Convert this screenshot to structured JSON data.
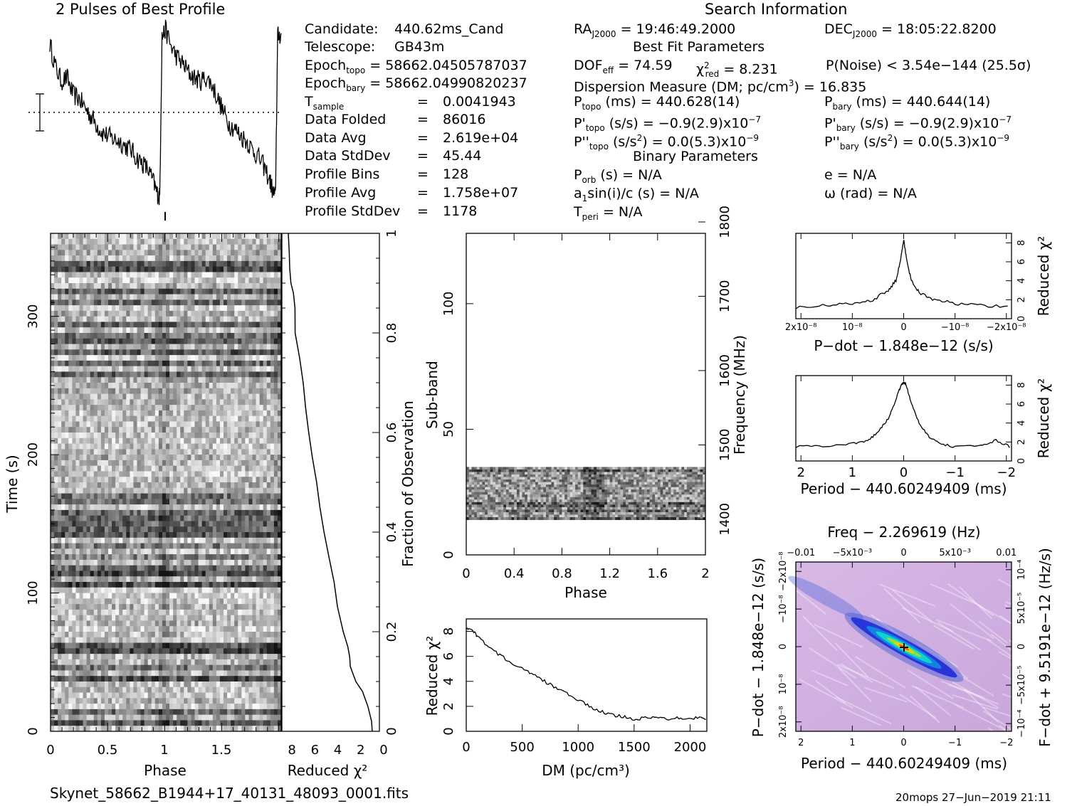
{
  "profile_title": "2 Pulses of Best Profile",
  "search_title": "Search Information",
  "candidate": {
    "label": "Candidate:",
    "value": "440.62ms_Cand"
  },
  "telescope": {
    "label": "Telescope:",
    "value": "GB43m"
  },
  "epoch_topo": {
    "label": "Epoch",
    "sub": "topo",
    "value": "= 58662.04505787037"
  },
  "epoch_bary": {
    "label": "Epoch",
    "sub": "bary",
    "value": "= 58662.04990820237"
  },
  "t_sample": {
    "label": "T",
    "sub": "sample",
    "value": "0.0041943"
  },
  "stats": [
    {
      "label": "Data Folded",
      "value": "86016"
    },
    {
      "label": "Data Avg",
      "value": "2.619e+04"
    },
    {
      "label": "Data StdDev",
      "value": "45.44"
    },
    {
      "label": "Profile Bins",
      "value": "128"
    },
    {
      "label": "Profile Avg",
      "value": "1.758e+07"
    },
    {
      "label": "Profile StdDev",
      "value": "1178"
    }
  ],
  "eq": "=",
  "ra": {
    "label": "RA",
    "sub": "J2000",
    "value": "= 19:46:49.2000"
  },
  "dec": {
    "label": "DEC",
    "sub": "J2000",
    "value": "= 18:05:22.8200"
  },
  "best_fit_title": "Best Fit Parameters",
  "dof": {
    "label": "DOF",
    "sub": "eff",
    "value": "= 74.59"
  },
  "chi2": {
    "label": "χ",
    "sup": "2",
    "sub": "red",
    "value": "= 8.231"
  },
  "pnoise": "P(Noise) < 3.54e−144  (25.5σ)",
  "dm_line": {
    "pre": "Dispersion Measure (DM; pc/cm",
    "sup": "3",
    "post": ") = 16.835"
  },
  "p_topo": {
    "label": "P",
    "sub": "topo",
    "value": "(ms) =  440.628(14)"
  },
  "p_bary": {
    "label": "P",
    "sub": "bary",
    "value": "(ms) =  440.644(14)"
  },
  "pd_topo": {
    "label": "P'",
    "sub": "topo",
    "value": "(s/s) = −0.9(2.9)x10",
    "exp": "−7"
  },
  "pd_bary": {
    "label": "P'",
    "sub": "bary",
    "value": "(s/s) = −0.9(2.9)x10",
    "exp": "−7"
  },
  "pdd_topo": {
    "label": "P''",
    "sub": "topo",
    "pre": "(s/s",
    "sup": "2",
    "value": ") = 0.0(5.3)x10",
    "exp": "−9"
  },
  "pdd_bary": {
    "label": "P''",
    "sub": "bary",
    "pre": "(s/s",
    "sup": "2",
    "value": ") = 0.0(5.3)x10",
    "exp": "−9"
  },
  "binary_title": "Binary Parameters",
  "p_orb": {
    "label": "P",
    "sub": "orb",
    "value": "(s) = N/A"
  },
  "e_line": "e = N/A",
  "a1": {
    "pre": "a",
    "sub": "1",
    "value": "sin(i)/c (s) = N/A"
  },
  "omega_line": "ω (rad) = N/A",
  "t_peri": {
    "label": "T",
    "sub": "peri",
    "value": "= N/A"
  },
  "filename": "Skynet_58662_B1944+17_40131_48093_0001.fits",
  "footer": "20mops 27−Jun−2019 21:11",
  "chart_data": [
    {
      "type": "line",
      "name": "profile",
      "title": "2 Pulses of Best Profile",
      "x_range": [
        0,
        2
      ],
      "note_peaks_at_phase": [
        0.97,
        1.97
      ],
      "x": [
        0,
        0.05,
        0.1,
        0.15,
        0.2,
        0.25,
        0.3,
        0.35,
        0.4,
        0.45,
        0.5,
        0.55,
        0.6,
        0.65,
        0.7,
        0.75,
        0.8,
        0.85,
        0.9,
        0.93,
        0.95,
        0.97,
        1.0,
        1.05,
        1.1,
        1.15,
        1.2,
        1.25,
        1.3,
        1.35,
        1.4,
        1.45,
        1.5,
        1.55,
        1.6,
        1.65,
        1.7,
        1.75,
        1.8,
        1.85,
        1.9,
        1.93,
        1.95,
        1.97,
        2.0
      ],
      "y": [
        0.92,
        0.78,
        0.7,
        0.72,
        0.62,
        0.6,
        0.55,
        0.5,
        0.45,
        0.4,
        0.38,
        0.36,
        0.35,
        0.32,
        0.3,
        0.25,
        0.22,
        0.18,
        0.1,
        0.04,
        0.02,
        0.96,
        1.0,
        0.9,
        0.84,
        0.8,
        0.75,
        0.72,
        0.7,
        0.72,
        0.68,
        0.6,
        0.52,
        0.45,
        0.42,
        0.38,
        0.35,
        0.3,
        0.26,
        0.2,
        0.12,
        0.05,
        0.02,
        0.96,
        0.98
      ]
    },
    {
      "type": "heatmap",
      "name": "time-phase",
      "xlabel": "Phase",
      "ylabel": "Time (s)",
      "x_ticks": [
        "0",
        "0.5",
        "1",
        "1.5"
      ],
      "y_ticks": [
        "0",
        "100",
        "200",
        "300"
      ],
      "ylim": [
        0,
        360
      ],
      "xlim": [
        0,
        2
      ]
    },
    {
      "type": "line",
      "name": "time-chi2",
      "xlabel": "Reduced χ²",
      "ylabel": "Fraction of Observation",
      "x_ticks": [
        "8",
        "6",
        "4",
        "2",
        "0"
      ],
      "y_ticks": [
        "0",
        "0.2",
        "0.4",
        "0.6",
        "0.8",
        "1"
      ],
      "fraction": [
        0,
        0.02,
        0.05,
        0.08,
        0.1,
        0.13,
        0.15,
        0.17,
        0.2,
        0.25,
        0.3,
        0.35,
        0.4,
        0.45,
        0.5,
        0.55,
        0.6,
        0.65,
        0.7,
        0.75,
        0.8,
        0.85,
        0.88,
        0.9,
        0.93,
        0.96,
        1.0
      ],
      "chi2": [
        0.6,
        0.7,
        1.0,
        1.5,
        2.0,
        2.5,
        2.6,
        2.8,
        3.2,
        3.6,
        4.0,
        4.4,
        4.8,
        5.2,
        5.5,
        5.8,
        6.1,
        6.4,
        6.7,
        7.0,
        7.3,
        7.4,
        7.5,
        7.7,
        7.8,
        7.9,
        8.0
      ]
    },
    {
      "type": "heatmap",
      "name": "subband-phase",
      "xlabel": "Phase",
      "ylabel": "Sub-band",
      "y2label": "Frequency (MHz)",
      "x_ticks": [
        "0",
        "0.4",
        "0.8",
        "1.2",
        "1.6",
        "2"
      ],
      "y_ticks": [
        "0",
        "50",
        "100"
      ],
      "y2_ticks": [
        "1400",
        "1500",
        "1600",
        "1700",
        "1800"
      ],
      "active_subbands": [
        14,
        35
      ],
      "ylim": [
        0,
        128
      ]
    },
    {
      "type": "line",
      "name": "dm-chi2",
      "xlabel": "DM (pc/cm³)",
      "ylabel": "Reduced χ²",
      "x_ticks": [
        "0",
        "500",
        "1000",
        "1500",
        "2000"
      ],
      "y_ticks": [
        "0",
        "2",
        "4",
        "6",
        "8"
      ],
      "xlim": [
        0,
        2150
      ],
      "ylim": [
        0,
        9
      ],
      "x": [
        0,
        50,
        100,
        200,
        300,
        400,
        500,
        600,
        700,
        800,
        900,
        1000,
        1100,
        1200,
        1300,
        1400,
        1500,
        1600,
        1700,
        1800,
        1900,
        2000,
        2100,
        2150
      ],
      "y": [
        8.3,
        8.1,
        7.6,
        6.8,
        6.1,
        5.5,
        5.0,
        4.5,
        4.0,
        3.5,
        3.0,
        2.5,
        2.0,
        1.6,
        1.3,
        1.2,
        1.0,
        1.05,
        1.1,
        1.0,
        1.1,
        1.05,
        1.1,
        1.0
      ]
    },
    {
      "type": "line",
      "name": "pdot-chi2",
      "xlabel": "P−dot − 1.848e−12 (s/s)",
      "ylabel": "Reduced χ²",
      "x_ticks": [
        "2x10⁻⁸",
        "10⁻⁸",
        "0",
        "−10⁻⁸",
        "−2x10⁻⁸"
      ],
      "y_ticks": [
        "0",
        "2",
        "4",
        "6",
        "8"
      ],
      "xlim": [
        2.1e-08,
        -2.1e-08
      ],
      "ylim": [
        0,
        9
      ],
      "x": [
        2.1e-08,
        1.5e-08,
        1e-08,
        6e-09,
        3e-09,
        1.5e-09,
        5e-10,
        0,
        -5e-10,
        -1.5e-09,
        -3e-09,
        -6e-09,
        -1e-08,
        -1.5e-08,
        -2.1e-08
      ],
      "y": [
        1.2,
        1.4,
        1.6,
        2.0,
        3.0,
        4.0,
        6.5,
        8.3,
        6.5,
        4.0,
        2.8,
        2.0,
        1.6,
        1.4,
        1.2
      ]
    },
    {
      "type": "line",
      "name": "period-chi2",
      "xlabel": "Period − 440.60249409 (ms)",
      "ylabel": "Reduced χ²",
      "x_ticks": [
        "2",
        "1",
        "0",
        "−1",
        "−2"
      ],
      "y_ticks": [
        "0",
        "2",
        "4",
        "6",
        "8"
      ],
      "xlim": [
        2.1,
        -2.1
      ],
      "ylim": [
        0,
        9
      ],
      "x": [
        2.1,
        1.5,
        1.0,
        0.7,
        0.5,
        0.3,
        0.15,
        0.05,
        0,
        -0.05,
        -0.15,
        -0.3,
        -0.5,
        -0.7,
        -1.0,
        -1.5,
        -1.8,
        -2.1
      ],
      "y": [
        1.5,
        1.6,
        1.8,
        2.2,
        3.0,
        4.5,
        6.5,
        8.0,
        8.3,
        8.0,
        6.0,
        4.0,
        2.5,
        1.8,
        1.5,
        1.6,
        2.2,
        1.4
      ]
    },
    {
      "type": "heatmap",
      "name": "period-pdot",
      "title": "Freq − 2.269619 (Hz)",
      "xlabel": "Period − 440.60249409 (ms)",
      "ylabel": "P−dot − 1.848e−12 (s/s)",
      "y2label": "F−dot + 9.5191e−12 (Hz/s)",
      "x_ticks": [
        "2",
        "1",
        "0",
        "−1",
        "−2"
      ],
      "top_ticks": [
        "−0.01",
        "−5x10⁻³",
        "0",
        "5x10⁻³",
        "0.01"
      ],
      "y_ticks": [
        "2x10⁻⁸",
        "10⁻⁸",
        "0",
        "−10⁻⁸",
        "−2x10⁻⁸"
      ],
      "y2_ticks": [
        "−10⁻⁴",
        "−5x10⁻⁵",
        "0",
        "5x10⁻⁵",
        "10⁻⁴"
      ]
    }
  ]
}
